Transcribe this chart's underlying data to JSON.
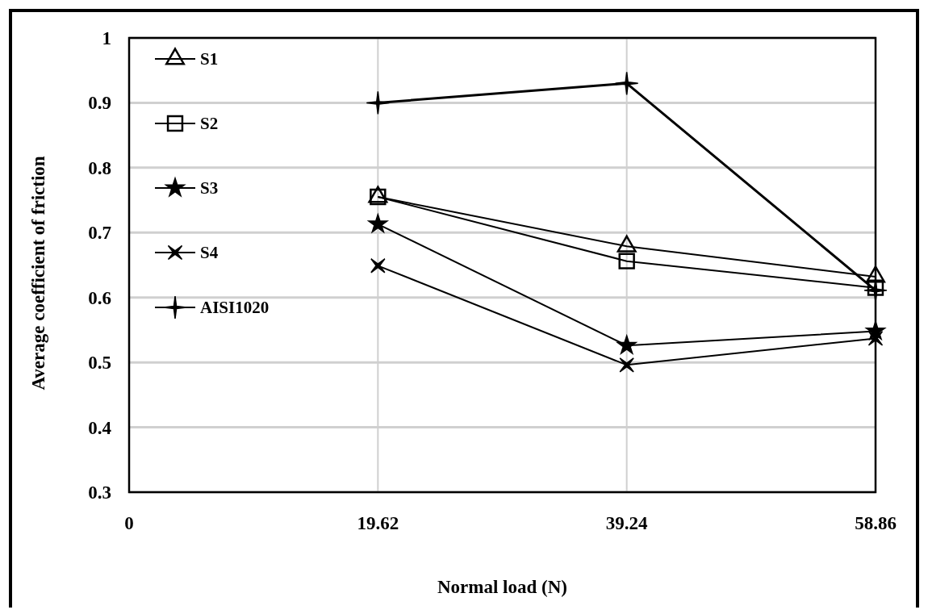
{
  "chart_data": {
    "type": "line",
    "xlabel": "Normal load (N)",
    "ylabel": "Average coefficient of friction",
    "x": [
      19.62,
      39.24,
      58.86
    ],
    "xlim": [
      0,
      58.86
    ],
    "xticks": [
      0,
      19.62,
      39.24,
      58.86
    ],
    "ylim": [
      0.3,
      1
    ],
    "yticks": [
      0.3,
      0.4,
      0.5,
      0.6,
      0.7,
      0.8,
      0.9,
      1
    ],
    "grid": true,
    "legend": "top left",
    "series": [
      {
        "name": "S1",
        "color": "#000000",
        "marker": "triangle",
        "values": [
          0.755,
          0.679,
          0.632
        ]
      },
      {
        "name": "S2",
        "color": "#000000",
        "marker": "square",
        "values": [
          0.755,
          0.656,
          0.615
        ]
      },
      {
        "name": "S3",
        "color": "#000000",
        "marker": "star",
        "values": [
          0.713,
          0.526,
          0.548
        ]
      },
      {
        "name": "S4",
        "color": "#000000",
        "marker": "cross",
        "values": [
          0.649,
          0.496,
          0.537
        ]
      },
      {
        "name": "AISI1020",
        "color": "#000000",
        "marker": "plus",
        "values": [
          0.9,
          0.93,
          0.611
        ]
      }
    ]
  }
}
